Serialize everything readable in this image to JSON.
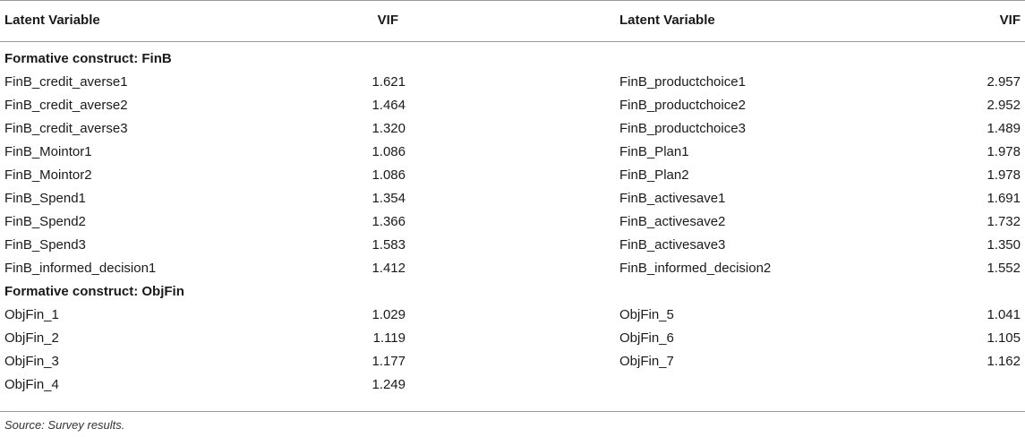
{
  "header": {
    "col1": "Latent Variable",
    "col2": "VIF",
    "col3": "Latent Variable",
    "col4": "VIF"
  },
  "rows": [
    {
      "type": "section",
      "label": "Formative construct: FinB"
    },
    {
      "type": "data",
      "l1": "FinB_credit_averse1",
      "v1": "1.621",
      "l2": "FinB_productchoice1",
      "v2": "2.957"
    },
    {
      "type": "data",
      "l1": "FinB_credit_averse2",
      "v1": "1.464",
      "l2": "FinB_productchoice2",
      "v2": "2.952"
    },
    {
      "type": "data",
      "l1": "FinB_credit_averse3",
      "v1": "1.320",
      "l2": "FinB_productchoice3",
      "v2": "1.489"
    },
    {
      "type": "data",
      "l1": "FinB_Mointor1",
      "v1": "1.086",
      "l2": "FinB_Plan1",
      "v2": "1.978"
    },
    {
      "type": "data",
      "l1": "FinB_Mointor2",
      "v1": "1.086",
      "l2": "FinB_Plan2",
      "v2": "1.978"
    },
    {
      "type": "data",
      "l1": "FinB_Spend1",
      "v1": "1.354",
      "l2": "FinB_activesave1",
      "v2": "1.691"
    },
    {
      "type": "data",
      "l1": "FinB_Spend2",
      "v1": "1.366",
      "l2": "FinB_activesave2",
      "v2": "1.732"
    },
    {
      "type": "data",
      "l1": "FinB_Spend3",
      "v1": "1.583",
      "l2": "FinB_activesave3",
      "v2": "1.350"
    },
    {
      "type": "data",
      "l1": "FinB_informed_decision1",
      "v1": "1.412",
      "l2": "FinB_informed_decision2",
      "v2": "1.552"
    },
    {
      "type": "section",
      "label": "Formative construct: ObjFin"
    },
    {
      "type": "data",
      "l1": "ObjFin_1",
      "v1": "1.029",
      "l2": "ObjFin_5",
      "v2": "1.041"
    },
    {
      "type": "data",
      "l1": "ObjFin_2",
      "v1": "1.119",
      "l2": "ObjFin_6",
      "v2": "1.105"
    },
    {
      "type": "data",
      "l1": "ObjFin_3",
      "v1": "1.177",
      "l2": "ObjFin_7",
      "v2": "1.162"
    },
    {
      "type": "data",
      "l1": "ObjFin_4",
      "v1": "1.249",
      "l2": "",
      "v2": ""
    }
  ],
  "footnote": "Source: Survey results."
}
